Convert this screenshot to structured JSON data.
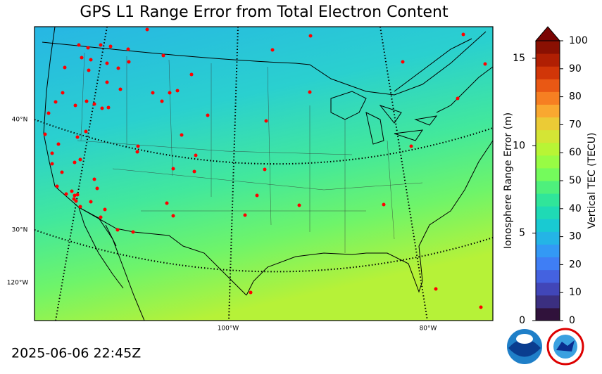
{
  "title": "GPS L1 Range Error from Total Electron Content",
  "timestamp": "2025-06-06 22:45Z",
  "map": {
    "lat_labels": [
      "40°N",
      "30°N"
    ],
    "lon_labels": [
      "120°W",
      "100°W",
      "80°W"
    ]
  },
  "colorbar": {
    "left_label": "Ionosphere Range Error (m)",
    "left_lim": [
      0,
      16
    ],
    "left_ticks": [
      0,
      5,
      10,
      15
    ],
    "right_label": "Vertical TEC (TECU)",
    "right_lim": [
      0,
      100
    ],
    "right_ticks": [
      0,
      10,
      20,
      30,
      40,
      50,
      60,
      70,
      80,
      90,
      100
    ],
    "colors": [
      "#30123b",
      "#3b2f80",
      "#4146b8",
      "#4462e0",
      "#3f7ef5",
      "#3399f5",
      "#24b4e6",
      "#19cad2",
      "#1fdab5",
      "#30e59a",
      "#4ef07c",
      "#74fb5c",
      "#98fc44",
      "#b8f535",
      "#d4e535",
      "#ebcb36",
      "#f9a830",
      "#f67f22",
      "#e95814",
      "#d13608",
      "#b01f03",
      "#8a1002"
    ],
    "extend_color": "#7a0403"
  }
}
